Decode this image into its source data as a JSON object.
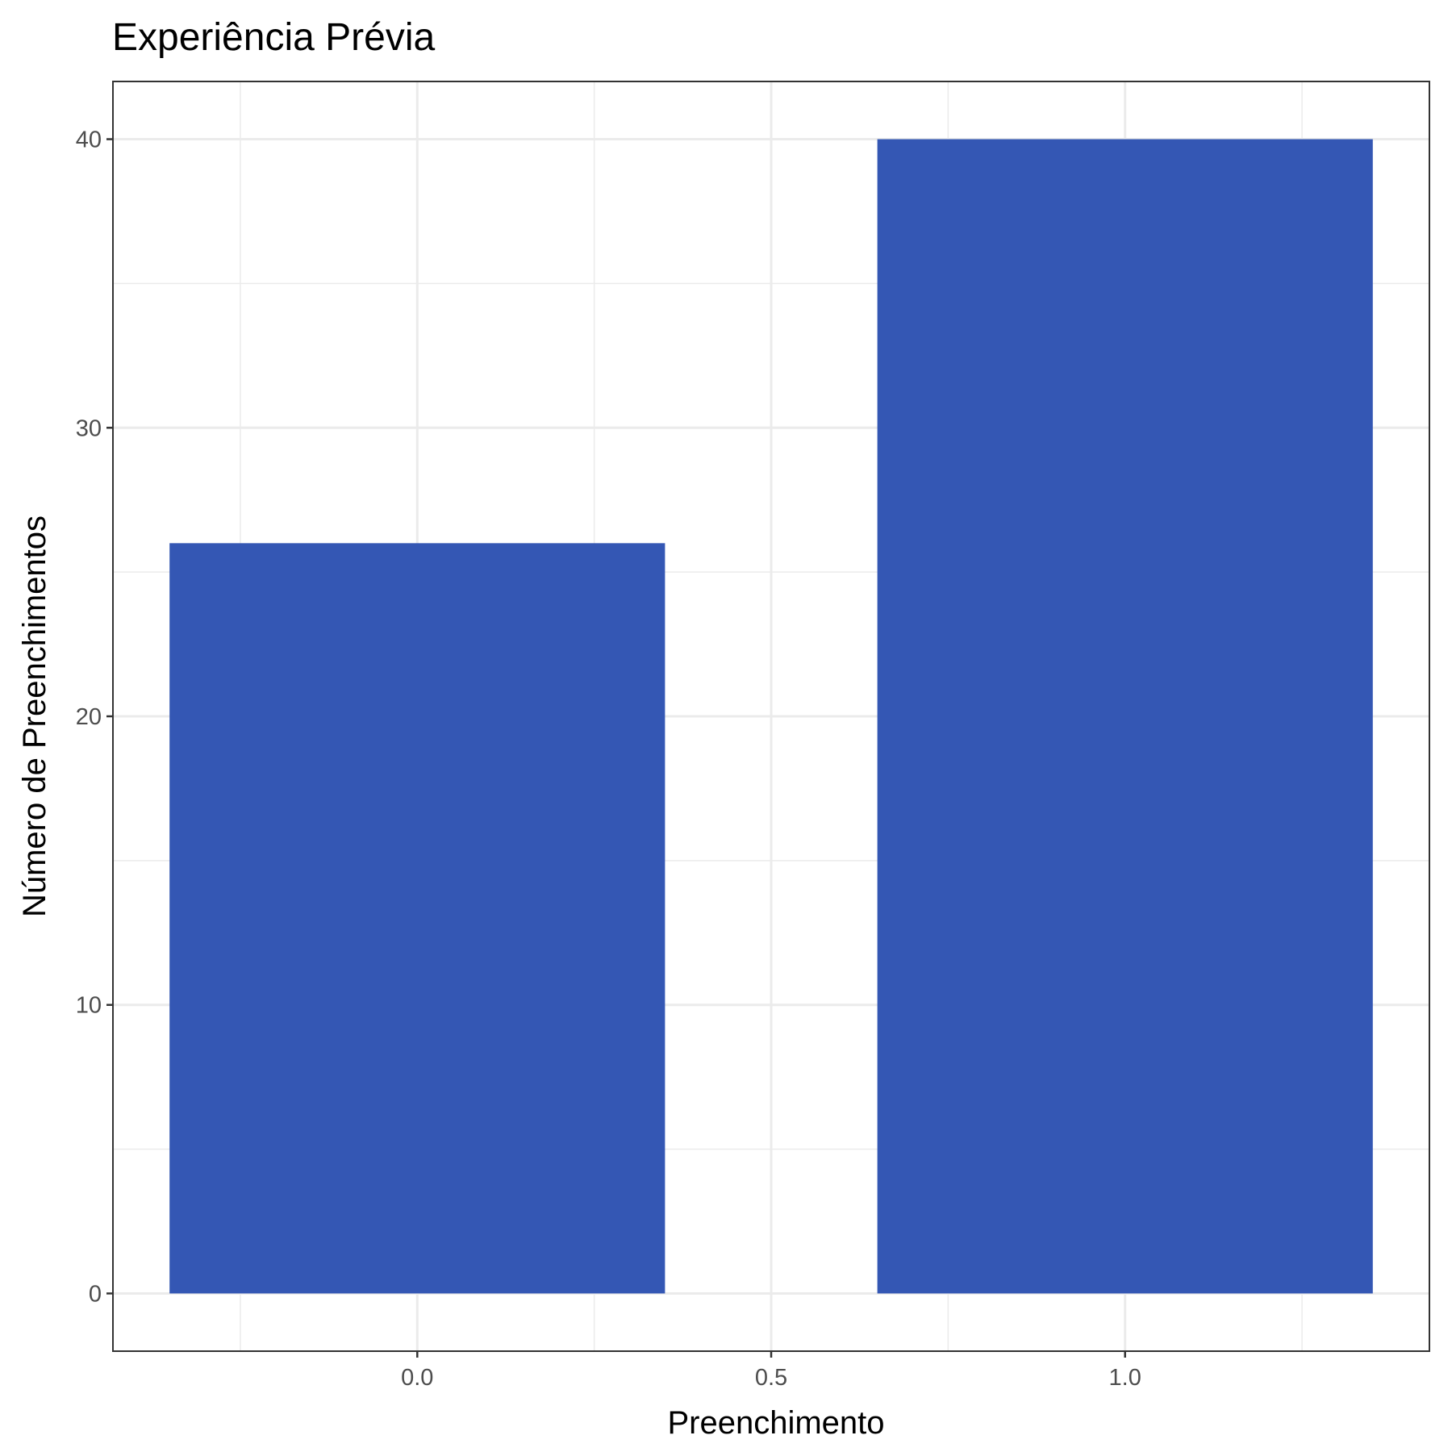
{
  "chart_data": {
    "type": "bar",
    "title": "Experiência Prévia",
    "xlabel": "Preenchimento",
    "ylabel": "Número de Preenchimentos",
    "x": [
      0,
      1
    ],
    "values": [
      26,
      40
    ],
    "xlim": [
      -0.43,
      1.43
    ],
    "ylim": [
      -2,
      42
    ],
    "xticks": [
      0.0,
      0.5,
      1.0
    ],
    "xtick_labels": [
      "0.0",
      "0.5",
      "1.0"
    ],
    "yticks": [
      0,
      10,
      20,
      30,
      40
    ],
    "ytick_labels": [
      "0",
      "10",
      "20",
      "30",
      "40"
    ],
    "bar_width": 0.7,
    "grid": true,
    "bar_color": "#3457b4",
    "background_color": "#ffffff",
    "grid_color": "#ebebeb"
  }
}
